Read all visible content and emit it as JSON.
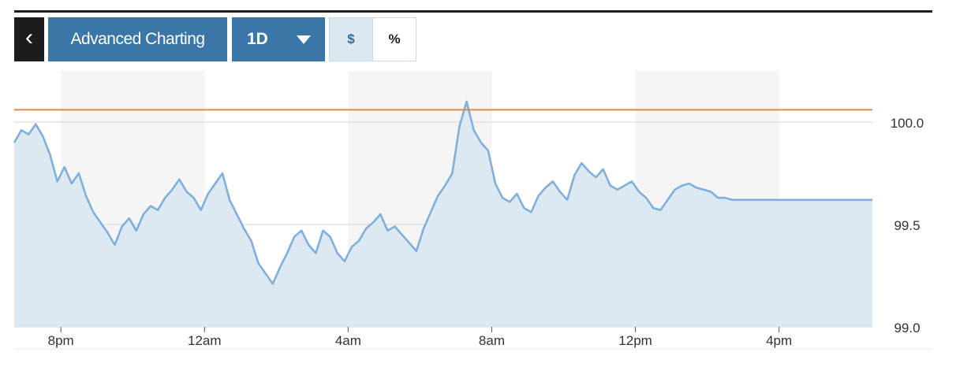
{
  "toolbar": {
    "back_icon": "chevron-left-icon",
    "back_glyph": "‹",
    "advanced_label": "Advanced Charting",
    "range_label": "1D",
    "range_icon": "caret-down-icon",
    "currency_label": "$",
    "percent_label": "%",
    "active_toggle": "$"
  },
  "colors": {
    "line": "#7fb0dd",
    "area": "#dde9f2",
    "reference": "#e08a4a",
    "band": "#f5f5f5",
    "button": "#3a77a8"
  },
  "chart_data": {
    "type": "area",
    "title": "",
    "xlabel": "",
    "ylabel": "",
    "ylim": [
      99.0,
      100.25
    ],
    "y_ticks": [
      99.0,
      99.5,
      100.0
    ],
    "y_tick_labels": [
      "99.0",
      "99.5",
      "100.0"
    ],
    "x_ticks": [
      "8pm",
      "12am",
      "4am",
      "8am",
      "12pm",
      "4pm"
    ],
    "x_tick_hours": [
      20,
      24,
      28,
      32,
      36,
      40
    ],
    "x_range_hours": [
      18.7,
      42.6
    ],
    "reference_line": 100.06,
    "grid": true,
    "series": [
      {
        "x": [
          18.7,
          18.9,
          19.1,
          19.3,
          19.5,
          19.7,
          19.9,
          20.1,
          20.3,
          20.5,
          20.7,
          20.9,
          21.1,
          21.3,
          21.5,
          21.7,
          21.9,
          22.1,
          22.3,
          22.5,
          22.7,
          22.9,
          23.1,
          23.3,
          23.5,
          23.7,
          23.9,
          24.1,
          24.3,
          24.5,
          24.7,
          24.9,
          25.1,
          25.3,
          25.5,
          25.7,
          25.9,
          26.1,
          26.3,
          26.5,
          26.7,
          26.9,
          27.1,
          27.3,
          27.5,
          27.7,
          27.9,
          28.1,
          28.3,
          28.5,
          28.7,
          28.9,
          29.1,
          29.3,
          29.5,
          29.7,
          29.9,
          30.1,
          30.3,
          30.5,
          30.7,
          30.9,
          31.1,
          31.3,
          31.5,
          31.7,
          31.9,
          32.1,
          32.3,
          32.5,
          32.7,
          32.9,
          33.1,
          33.3,
          33.5,
          33.7,
          33.9,
          34.1,
          34.3,
          34.5,
          34.7,
          34.9,
          35.1,
          35.3,
          35.5,
          35.7,
          35.9,
          36.1,
          36.3,
          36.5,
          36.7,
          36.9,
          37.1,
          37.3,
          37.5,
          37.7,
          37.9,
          38.1,
          38.3,
          38.5,
          38.7,
          38.9,
          39.1,
          39.3,
          39.5,
          39.7,
          39.9,
          40.1,
          40.3,
          40.5,
          40.7,
          40.9,
          41.1,
          41.3,
          41.5,
          41.7,
          41.9,
          42.1,
          42.3,
          42.6
        ],
        "values": [
          99.9,
          99.96,
          99.94,
          99.99,
          99.93,
          99.84,
          99.71,
          99.78,
          99.7,
          99.75,
          99.64,
          99.56,
          99.51,
          99.46,
          99.4,
          99.49,
          99.53,
          99.47,
          99.55,
          99.59,
          99.57,
          99.63,
          99.67,
          99.72,
          99.66,
          99.63,
          99.57,
          99.65,
          99.7,
          99.75,
          99.62,
          99.55,
          99.48,
          99.42,
          99.31,
          99.26,
          99.21,
          99.29,
          99.36,
          99.44,
          99.47,
          99.4,
          99.36,
          99.47,
          99.44,
          99.36,
          99.32,
          99.39,
          99.42,
          99.48,
          99.51,
          99.55,
          99.47,
          99.49,
          99.45,
          99.41,
          99.37,
          99.48,
          99.56,
          99.64,
          99.69,
          99.75,
          99.98,
          100.1,
          99.96,
          99.9,
          99.86,
          99.7,
          99.63,
          99.61,
          99.65,
          99.58,
          99.56,
          99.64,
          99.68,
          99.71,
          99.66,
          99.62,
          99.74,
          99.8,
          99.76,
          99.73,
          99.77,
          99.69,
          99.67,
          99.69,
          99.71,
          99.66,
          99.63,
          99.58,
          99.57,
          99.62,
          99.67,
          99.69,
          99.7,
          99.68,
          99.67,
          99.66,
          99.63,
          99.63,
          99.62,
          99.62,
          99.62,
          99.62,
          99.62,
          99.62,
          99.62,
          99.62,
          99.62,
          99.62,
          99.62,
          99.62,
          99.62,
          99.62,
          99.62,
          99.62,
          99.62,
          99.62,
          99.62,
          99.62
        ]
      }
    ]
  }
}
